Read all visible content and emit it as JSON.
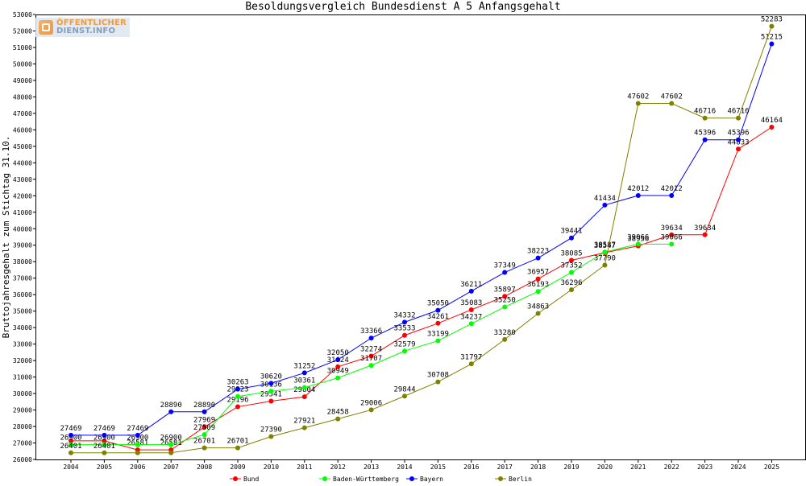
{
  "logo": {
    "line1": "ÖFFENTLICHER",
    "line2": "DIENST.INFO"
  },
  "chart_data": {
    "type": "line",
    "title": "Besoldungsvergleich Bundesdienst A 5 Anfangsgehalt",
    "xlabel": "",
    "ylabel": "Bruttojahresgehalt zum Stichtag 31.10.",
    "ylim": [
      26000,
      53000
    ],
    "ytick_step": 1000,
    "grid": false,
    "legend_position": "bottom",
    "x": [
      "2004",
      "2005",
      "2006",
      "2007",
      "2008",
      "2009",
      "2010",
      "2011",
      "2012",
      "2013",
      "2014",
      "2015",
      "2016",
      "2017",
      "2018",
      "2019",
      "2020",
      "2021",
      "2022",
      "2023",
      "2024",
      "2025"
    ],
    "series": [
      {
        "name": "Bund",
        "color": "#ff0000",
        "values": [
          27130,
          27130,
          26581,
          26581,
          27969,
          29196,
          29541,
          29804,
          31624,
          32274,
          33533,
          34261,
          35083,
          35897,
          36957,
          38085,
          38547,
          38956,
          39634,
          39634,
          44833,
          46164
        ],
        "labels": [
          "",
          "",
          "26581",
          "26581",
          "27969",
          "29196",
          "29541",
          "29804",
          "31624",
          "32274",
          "33533",
          "34261",
          "35083",
          "35897",
          "36957",
          "38085",
          "38547",
          "38956",
          "39634",
          "39634",
          "44833",
          "46164"
        ]
      },
      {
        "name": "Baden-Württemberg",
        "color": "#00ff00",
        "values": [
          26900,
          26900,
          26900,
          26900,
          27509,
          29823,
          30136,
          30361,
          30949,
          31707,
          32579,
          33199,
          34237,
          35250,
          36193,
          37352,
          38587,
          39066,
          39066,
          null,
          null,
          null
        ],
        "labels": [
          "26900",
          "26900",
          "26900",
          "26900",
          "27509",
          "29823",
          "30136",
          "30361",
          "30949",
          "31707",
          "32579",
          "33199",
          "34237",
          "35250",
          "36193",
          "37352",
          "38587",
          "39066",
          "39066",
          "",
          "",
          ""
        ]
      },
      {
        "name": "Bayern",
        "color": "#0000ff",
        "values": [
          27469,
          27469,
          27469,
          28890,
          28890,
          30263,
          30620,
          31252,
          32050,
          33366,
          34332,
          35050,
          36211,
          37349,
          38223,
          39441,
          41434,
          42012,
          42012,
          45396,
          45396,
          51215
        ],
        "labels": [
          "27469",
          "27469",
          "27469",
          "28890",
          "28890",
          "30263",
          "30620",
          "31252",
          "32050",
          "33366",
          "34332",
          "35050",
          "36211",
          "37349",
          "38223",
          "39441",
          "41434",
          "42012",
          "42012",
          "45396",
          "45396",
          "51215"
        ]
      },
      {
        "name": "Berlin",
        "color": "#808000",
        "values": [
          26401,
          26401,
          26401,
          26401,
          26701,
          26701,
          27390,
          27921,
          28458,
          29006,
          29844,
          30708,
          31797,
          33280,
          34863,
          36296,
          37790,
          47602,
          47602,
          46716,
          46716,
          52283
        ],
        "labels": [
          "26401",
          "26401",
          "",
          "",
          "26701",
          "26701",
          "27390",
          "27921",
          "28458",
          "29006",
          "29844",
          "30708",
          "31797",
          "33280",
          "34863",
          "36296",
          "37790",
          "47602",
          "47602",
          "46716",
          "46716",
          "52283"
        ]
      }
    ]
  }
}
